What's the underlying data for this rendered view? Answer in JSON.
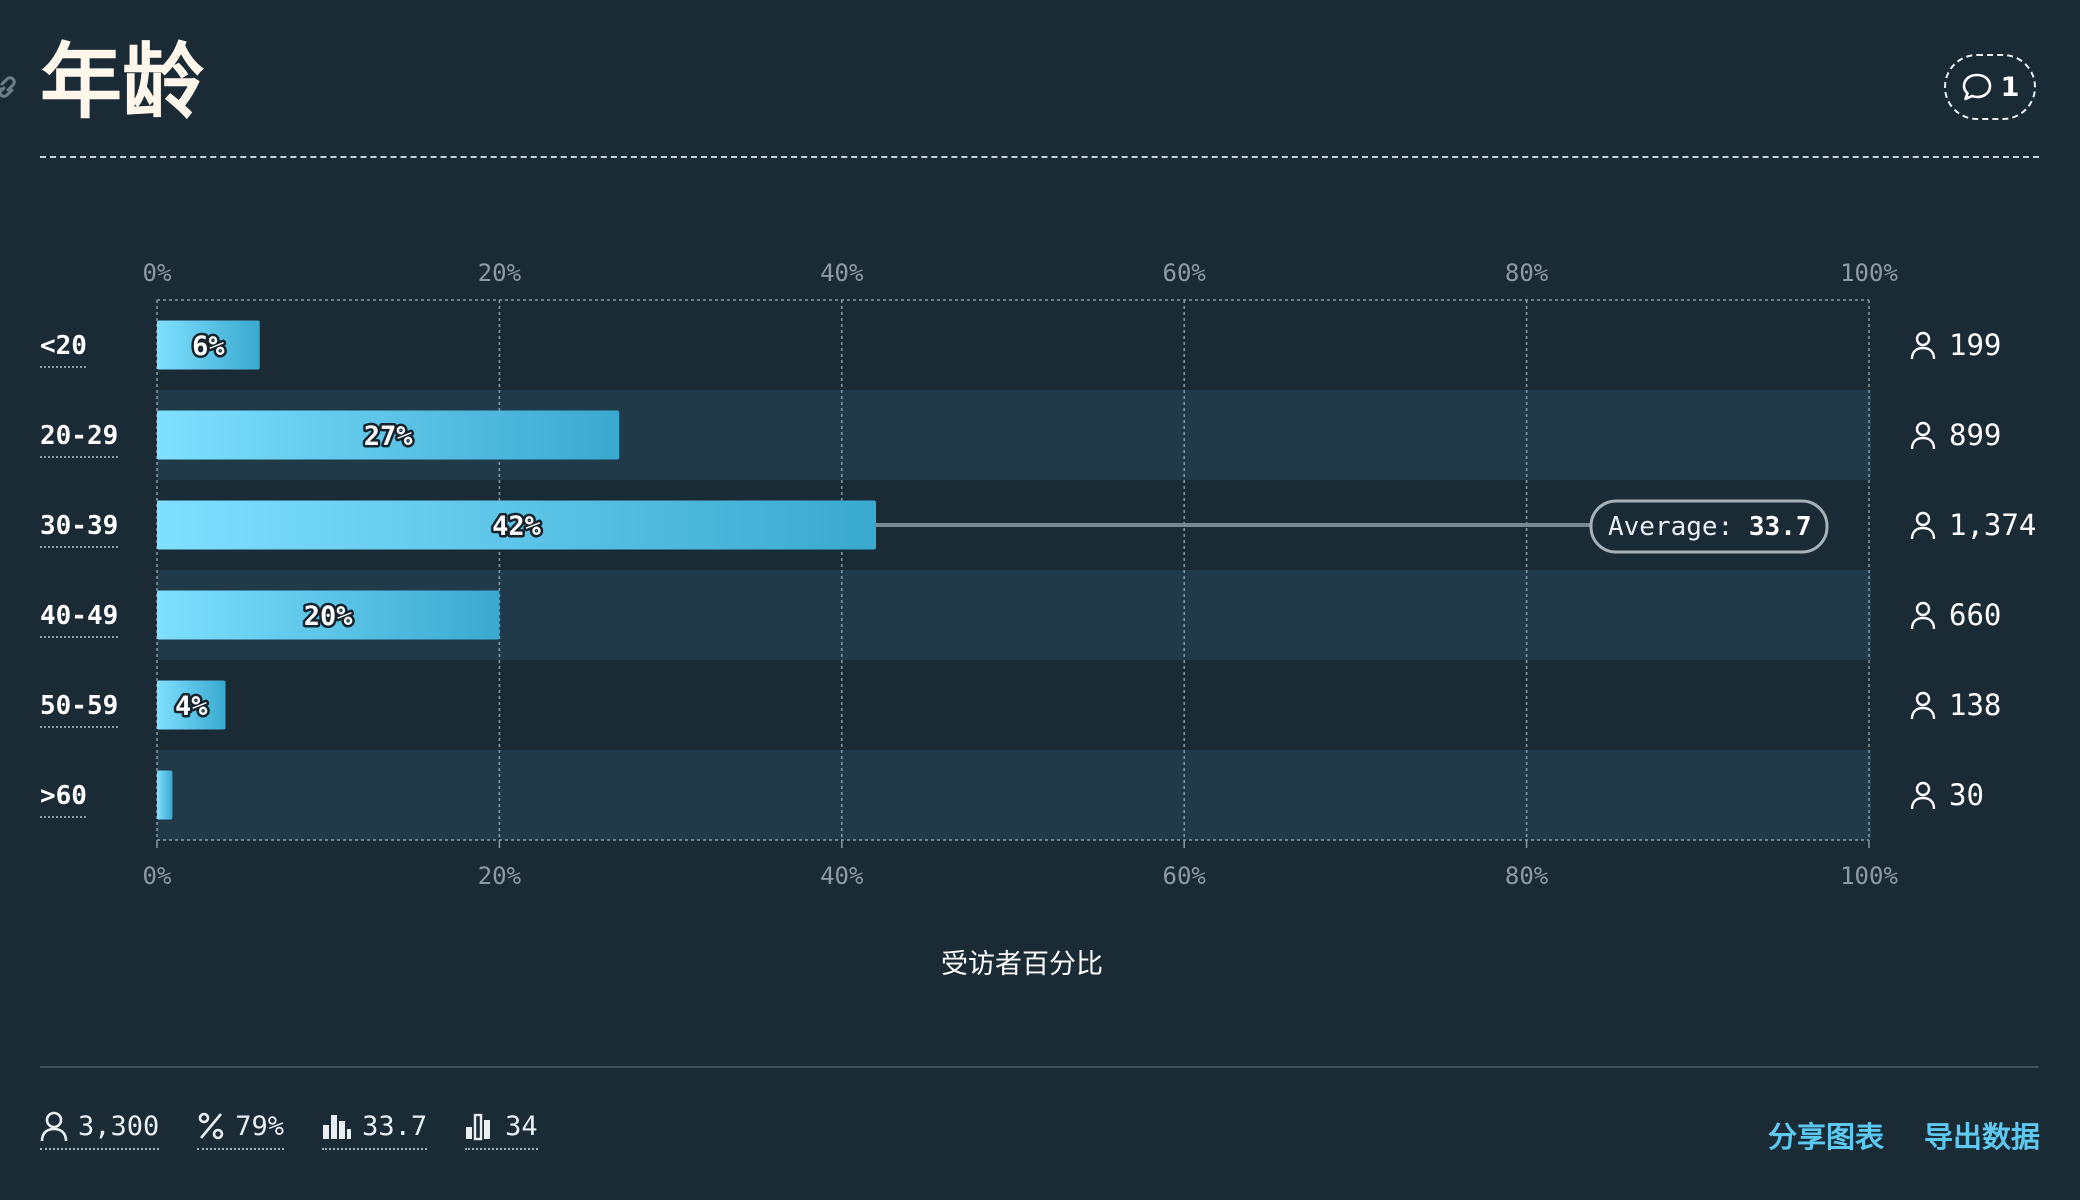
{
  "header": {
    "title": "年龄",
    "comment_count": "1"
  },
  "chart_data": {
    "type": "bar",
    "orientation": "horizontal",
    "categories": [
      "<20",
      "20-29",
      "30-39",
      "40-49",
      "50-59",
      ">60"
    ],
    "values": [
      6,
      27,
      42,
      20,
      4,
      0.9
    ],
    "value_labels": [
      "6%",
      "27%",
      "42%",
      "20%",
      "4%",
      ""
    ],
    "counts": [
      "199",
      "899",
      "1,374",
      "660",
      "138",
      "30"
    ],
    "xlim": [
      0,
      100
    ],
    "ticks": [
      "0%",
      "20%",
      "40%",
      "60%",
      "80%",
      "100%"
    ],
    "xlabel": "受访者百分比",
    "average": {
      "label": "Average:",
      "value": "33.7",
      "category_index": 2
    },
    "grid": true,
    "colors": {
      "bar_start": "#7fe0ff",
      "bar_end": "#3aa9cf",
      "band": "#203a4a",
      "background": "#1b2b36"
    }
  },
  "footer": {
    "stats": [
      {
        "icon": "person-icon",
        "value": "3,300"
      },
      {
        "icon": "percent-icon",
        "value": "79%"
      },
      {
        "icon": "bar-chart-icon",
        "value": "33.7"
      },
      {
        "icon": "median-bar-icon",
        "value": "34"
      }
    ],
    "actions": {
      "share": "分享图表",
      "export": "导出数据"
    }
  }
}
